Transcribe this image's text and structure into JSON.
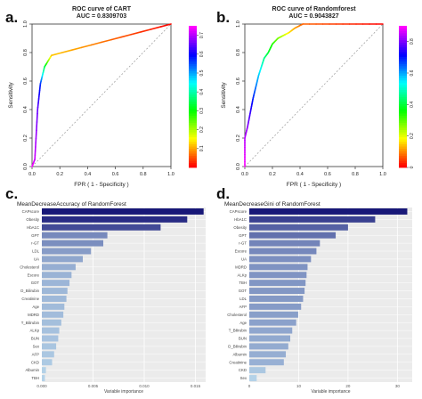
{
  "panel_labels": [
    "a.",
    "b.",
    "c.",
    "d."
  ],
  "chart_data": [
    {
      "type": "line",
      "title": "ROC curve of CART",
      "subtitle": "AUC = 0.8309703",
      "xlabel": "FPR ( 1 - Specificity )",
      "ylabel": "Sensitivity",
      "xlim": [
        0,
        1
      ],
      "ylim": [
        0,
        1
      ],
      "xticks": [
        "0.0",
        "0.2",
        "0.4",
        "0.6",
        "0.8",
        "1.0"
      ],
      "yticks": [
        "0.0",
        "0.2",
        "0.4",
        "0.6",
        "0.8",
        "1.0"
      ],
      "reference_line": "diagonal-dashed",
      "colorbar": {
        "ticks": [
          "0.1",
          "0.2",
          "0.3",
          "0.4",
          "0.5",
          "0.6",
          "0.7"
        ],
        "range": [
          0,
          0.75
        ],
        "colors": [
          "#ff0000",
          "#ffff00",
          "#00ff00",
          "#00ffff",
          "#0000ff",
          "#ff00ff"
        ]
      },
      "points": [
        {
          "x": 0.0,
          "y": 0.0,
          "c": 0.75
        },
        {
          "x": 0.02,
          "y": 0.05,
          "c": 0.72
        },
        {
          "x": 0.04,
          "y": 0.4,
          "c": 0.66
        },
        {
          "x": 0.06,
          "y": 0.58,
          "c": 0.58
        },
        {
          "x": 0.09,
          "y": 0.7,
          "c": 0.35
        },
        {
          "x": 0.14,
          "y": 0.78,
          "c": 0.12
        },
        {
          "x": 1.0,
          "y": 1.0,
          "c": 0.0
        }
      ]
    },
    {
      "type": "line",
      "title": "ROC curve of Randomforest",
      "subtitle": "AUC = 0.9043827",
      "xlabel": "FPR ( 1 - Specificity )",
      "ylabel": "Sensitivity",
      "xlim": [
        0,
        1
      ],
      "ylim": [
        0,
        1
      ],
      "xticks": [
        "0.0",
        "0.2",
        "0.4",
        "0.6",
        "0.8",
        "1.0"
      ],
      "yticks": [
        "0.0",
        "0.2",
        "0.4",
        "0.6",
        "0.8",
        "1.0"
      ],
      "reference_line": "diagonal-dashed",
      "colorbar": {
        "ticks": [
          "0",
          "0.2",
          "0.4",
          "0.6",
          "0.8"
        ],
        "range": [
          0,
          0.9
        ],
        "colors": [
          "#ff0000",
          "#ffff00",
          "#00ff00",
          "#00ffff",
          "#0000ff",
          "#ff00ff"
        ]
      },
      "points": [
        {
          "x": 0.0,
          "y": 0.0,
          "c": 0.9
        },
        {
          "x": 0.0,
          "y": 0.2,
          "c": 0.85
        },
        {
          "x": 0.02,
          "y": 0.28,
          "c": 0.82
        },
        {
          "x": 0.04,
          "y": 0.38,
          "c": 0.76
        },
        {
          "x": 0.06,
          "y": 0.48,
          "c": 0.7
        },
        {
          "x": 0.08,
          "y": 0.56,
          "c": 0.64
        },
        {
          "x": 0.1,
          "y": 0.64,
          "c": 0.58
        },
        {
          "x": 0.12,
          "y": 0.7,
          "c": 0.52
        },
        {
          "x": 0.14,
          "y": 0.76,
          "c": 0.46
        },
        {
          "x": 0.17,
          "y": 0.8,
          "c": 0.4
        },
        {
          "x": 0.2,
          "y": 0.86,
          "c": 0.34
        },
        {
          "x": 0.24,
          "y": 0.9,
          "c": 0.28
        },
        {
          "x": 0.28,
          "y": 0.92,
          "c": 0.22
        },
        {
          "x": 0.32,
          "y": 0.94,
          "c": 0.17
        },
        {
          "x": 0.36,
          "y": 0.97,
          "c": 0.12
        },
        {
          "x": 0.42,
          "y": 1.0,
          "c": 0.07
        },
        {
          "x": 1.0,
          "y": 1.0,
          "c": 0.0
        }
      ]
    },
    {
      "type": "bar",
      "orientation": "horizontal",
      "title": "MeanDecreaseAccuracy of RandomForest",
      "xlabel": "Variable importance",
      "ylabel": "",
      "xlim": [
        0,
        0.016
      ],
      "xticks": [
        {
          "v": 0,
          "label": "0.000"
        },
        {
          "v": 0.005,
          "label": "0.005"
        },
        {
          "v": 0.01,
          "label": "0.010"
        },
        {
          "v": 0.015,
          "label": "0.015"
        }
      ],
      "categories": [
        "CAPscore",
        "Obesity",
        "HbA1C",
        "GPT",
        "r-GT",
        "LDL",
        "UA",
        "Cholesterol",
        "Escore",
        "GOT",
        "D_Bilirubin",
        "Creatinine",
        "Age",
        "MDRD",
        "T_Bilirubin",
        "ALKp",
        "BUN",
        "Sex",
        "AFP",
        "CKD",
        "Albumin",
        "TBH"
      ],
      "values": [
        0.0158,
        0.0142,
        0.0116,
        0.0064,
        0.006,
        0.0048,
        0.004,
        0.0033,
        0.0029,
        0.0027,
        0.0025,
        0.0024,
        0.0022,
        0.0021,
        0.0019,
        0.0017,
        0.0016,
        0.0014,
        0.0012,
        0.001,
        0.0004,
        0.0003
      ]
    },
    {
      "type": "bar",
      "orientation": "horizontal",
      "title": "MeanDecreaseGini of RandomForest",
      "xlabel": "Variable importance",
      "ylabel": "",
      "xlim": [
        0,
        33
      ],
      "xticks": [
        {
          "v": 0,
          "label": "0"
        },
        {
          "v": 10,
          "label": "10"
        },
        {
          "v": 20,
          "label": "20"
        },
        {
          "v": 30,
          "label": "30"
        }
      ],
      "categories": [
        "CAPscore",
        "HbA1C",
        "Obesity",
        "GPT",
        "r-GT",
        "Escore",
        "UA",
        "MDRD",
        "ALKp",
        "TBH",
        "GOT",
        "LDL",
        "AFP",
        "Cholesterol",
        "Age",
        "T_Bilirubin",
        "BUN",
        "D_Bilirubin",
        "Albumin",
        "Creatinine",
        "CKD",
        "Sex"
      ],
      "values": [
        32.0,
        25.5,
        20.0,
        17.5,
        14.3,
        13.6,
        12.5,
        11.8,
        11.6,
        11.4,
        11.2,
        10.9,
        10.5,
        9.9,
        9.5,
        8.7,
        8.3,
        7.9,
        7.4,
        7.0,
        3.3,
        1.5
      ]
    }
  ]
}
